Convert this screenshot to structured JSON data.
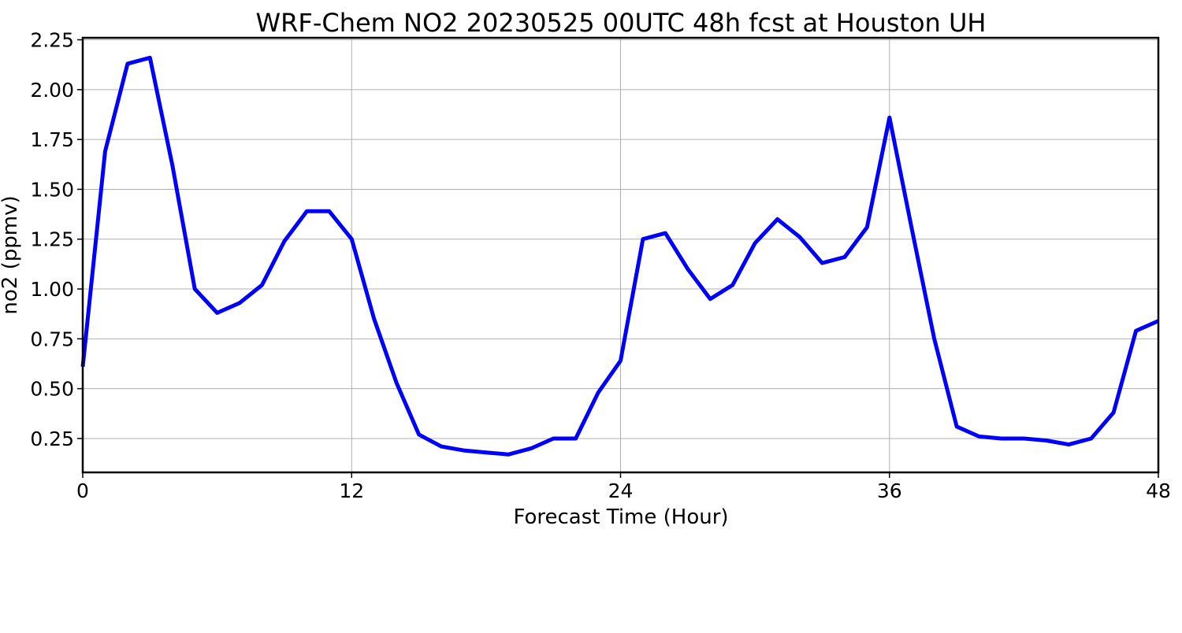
{
  "chart_data": {
    "type": "line",
    "title": "WRF-Chem NO2  20230525 00UTC 48h fcst at Houston UH",
    "xlabel": "Forecast Time (Hour)",
    "ylabel": "no2  (ppmv)",
    "xlim": [
      0,
      48
    ],
    "ylim": [
      0.08,
      2.26
    ],
    "xticks": [
      0,
      12,
      24,
      36,
      48
    ],
    "xtick_labels": [
      "0",
      "12",
      "24",
      "36",
      "48"
    ],
    "yticks": [
      0.25,
      0.5,
      0.75,
      1.0,
      1.25,
      1.5,
      1.75,
      2.0,
      2.25
    ],
    "ytick_labels": [
      "0.25",
      "0.50",
      "0.75",
      "1.00",
      "1.25",
      "1.50",
      "1.75",
      "2.00",
      "2.25"
    ],
    "grid": true,
    "series": [
      {
        "color": "#0000ff",
        "x": [
          0,
          1,
          2,
          3,
          4,
          5,
          6,
          7,
          8,
          9,
          10,
          11,
          12,
          13,
          14,
          15,
          16,
          17,
          18,
          19,
          20,
          21,
          22,
          23,
          24,
          25,
          26,
          27,
          28,
          29,
          30,
          31,
          32,
          33,
          34,
          35,
          36,
          37,
          38,
          39,
          40,
          41,
          42,
          43,
          44,
          45,
          46,
          47,
          48
        ],
        "y": [
          0.61,
          1.69,
          2.13,
          2.16,
          1.62,
          1.0,
          0.88,
          0.93,
          1.02,
          1.24,
          1.39,
          1.39,
          1.25,
          0.85,
          0.53,
          0.27,
          0.21,
          0.19,
          0.18,
          0.17,
          0.2,
          0.25,
          0.25,
          0.48,
          0.64,
          1.25,
          1.28,
          1.1,
          0.95,
          1.02,
          1.23,
          1.35,
          1.26,
          1.13,
          1.16,
          1.31,
          1.86,
          1.3,
          0.75,
          0.31,
          0.26,
          0.25,
          0.25,
          0.24,
          0.22,
          0.25,
          0.38,
          0.79,
          0.84
        ]
      }
    ]
  }
}
